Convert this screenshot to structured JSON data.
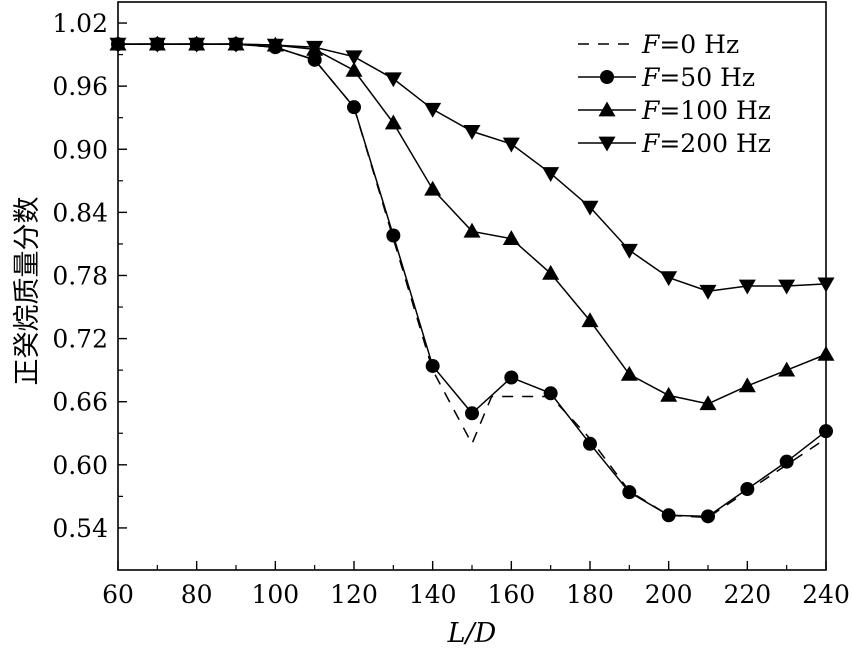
{
  "chart_data": {
    "type": "line",
    "title": "",
    "xlabel": "L/D",
    "ylabel": "正癸烷质量分数",
    "xlim": [
      60,
      240
    ],
    "ylim": [
      0.5,
      1.04
    ],
    "xticks": [
      60,
      80,
      100,
      120,
      140,
      160,
      180,
      200,
      220,
      240
    ],
    "yticks": [
      0.54,
      0.6,
      0.66,
      0.72,
      0.78,
      0.84,
      0.9,
      0.96,
      1.02
    ],
    "xtick_labels": [
      "60",
      "80",
      "100",
      "120",
      "140",
      "160",
      "180",
      "200",
      "220",
      "240"
    ],
    "ytick_labels": [
      "0.54",
      "0.60",
      "0.66",
      "0.72",
      "0.78",
      "0.84",
      "0.90",
      "0.96",
      "1.02"
    ],
    "grid": false,
    "legend_position": "top-right",
    "series": [
      {
        "name": "F=0 Hz",
        "label_italic": "F",
        "label_rest": "=0 Hz",
        "marker": "none",
        "dash": true,
        "x": [
          60,
          70,
          80,
          90,
          100,
          110,
          120,
          130,
          140,
          150,
          155,
          160,
          170,
          180,
          190,
          200,
          210,
          220,
          230,
          240
        ],
        "values": [
          1.0,
          1.0,
          1.0,
          1.0,
          0.997,
          0.985,
          0.94,
          0.815,
          0.69,
          0.62,
          0.665,
          0.665,
          0.665,
          0.625,
          0.575,
          0.552,
          0.55,
          0.575,
          0.6,
          0.625
        ]
      },
      {
        "name": "F=50 Hz",
        "label_italic": "F",
        "label_rest": "=50 Hz",
        "marker": "circle",
        "dash": false,
        "x": [
          60,
          70,
          80,
          90,
          100,
          110,
          120,
          130,
          140,
          150,
          160,
          170,
          180,
          190,
          200,
          210,
          220,
          230,
          240
        ],
        "values": [
          1.0,
          1.0,
          1.0,
          1.0,
          0.997,
          0.985,
          0.94,
          0.818,
          0.694,
          0.649,
          0.683,
          0.668,
          0.62,
          0.574,
          0.552,
          0.551,
          0.577,
          0.603,
          0.632
        ]
      },
      {
        "name": "F=100 Hz",
        "label_italic": "F",
        "label_rest": "=100 Hz",
        "marker": "triangle-up",
        "dash": false,
        "x": [
          60,
          70,
          80,
          90,
          100,
          110,
          120,
          130,
          140,
          150,
          160,
          170,
          180,
          190,
          200,
          210,
          220,
          230,
          240
        ],
        "values": [
          1.0,
          1.0,
          1.0,
          1.0,
          0.999,
          0.995,
          0.975,
          0.925,
          0.862,
          0.822,
          0.815,
          0.782,
          0.737,
          0.686,
          0.666,
          0.658,
          0.675,
          0.69,
          0.705
        ]
      },
      {
        "name": "F=200 Hz",
        "label_italic": "F",
        "label_rest": "=200 Hz",
        "marker": "triangle-down",
        "dash": false,
        "x": [
          60,
          70,
          80,
          90,
          100,
          110,
          120,
          130,
          140,
          150,
          160,
          170,
          180,
          190,
          200,
          210,
          220,
          230,
          240
        ],
        "values": [
          1.0,
          1.0,
          1.0,
          1.0,
          0.999,
          0.997,
          0.988,
          0.967,
          0.938,
          0.917,
          0.905,
          0.877,
          0.845,
          0.804,
          0.778,
          0.765,
          0.77,
          0.77,
          0.772
        ]
      }
    ]
  }
}
